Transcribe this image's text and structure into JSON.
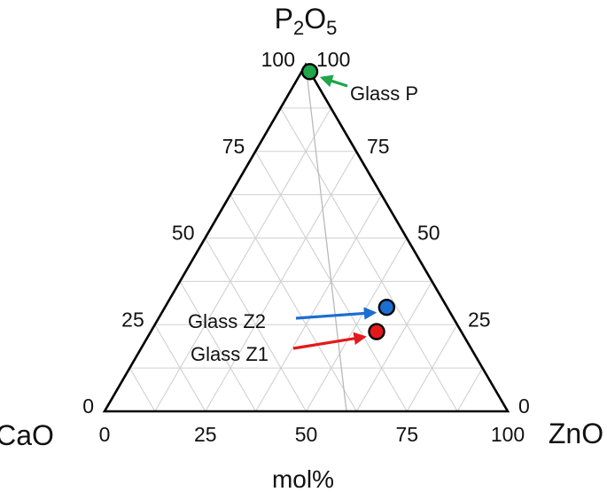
{
  "chart_data": {
    "type": "ternary",
    "vertices": {
      "top": {
        "label_main": "P",
        "sub1": "2",
        "mid": "O",
        "sub2": "5"
      },
      "left": {
        "label": "CaO"
      },
      "right": {
        "label": "ZnO"
      }
    },
    "unit_label": "mol%",
    "grid_step": 12.5,
    "ticks": {
      "bottom": [
        "0",
        "25",
        "50",
        "75",
        "100"
      ],
      "left": [
        "100",
        "75",
        "50",
        "25",
        "0"
      ],
      "right": [
        "0",
        "25",
        "50",
        "75",
        "100"
      ]
    },
    "points": [
      {
        "name": "Glass P",
        "P2O5": 98,
        "ZnO": 2,
        "CaO": 0,
        "color": "#1fa54a"
      },
      {
        "name": "Glass Z2",
        "P2O5": 30,
        "ZnO": 55,
        "CaO": 15,
        "color": "#1b6fd1"
      },
      {
        "name": "Glass Z1",
        "P2O5": 23,
        "ZnO": 56,
        "CaO": 21,
        "color": "#e3191c"
      }
    ],
    "trend_line": [
      {
        "P2O5": 100,
        "ZnO": 0
      },
      {
        "P2O5": 0,
        "ZnO": 60
      }
    ],
    "grid": true
  }
}
